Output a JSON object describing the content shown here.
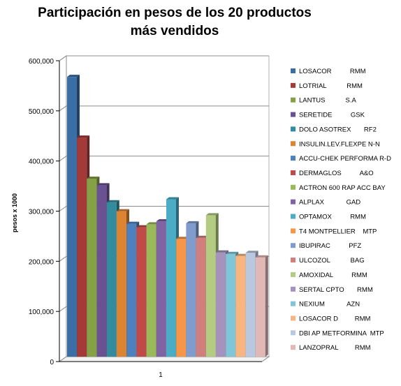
{
  "chart_data": {
    "type": "bar",
    "title": "Participación en pesos de los 20 productos más vendidos",
    "ylabel": "pesos x 1000",
    "xlabel": "",
    "categories": [
      "1"
    ],
    "ylim": [
      0,
      600000
    ],
    "yticks": [
      "0",
      "100,000",
      "200,000",
      "300,000",
      "400,000",
      "500,000",
      "600,000"
    ],
    "grid": true,
    "legend_position": "right",
    "series": [
      {
        "name": "LOSACOR          RMM",
        "value": 558000,
        "color": "#3a6ea5"
      },
      {
        "name": "LOTRIAL           RMM",
        "value": 437000,
        "color": "#a33a38"
      },
      {
        "name": "LANTUS           S.A",
        "value": 355000,
        "color": "#86a045"
      },
      {
        "name": "SERETIDE          GSK",
        "value": 342000,
        "color": "#6a5191"
      },
      {
        "name": "DOLO ASOTREX       RF2",
        "value": 308000,
        "color": "#338c9e"
      },
      {
        "name": "INSULIN.LEV.FLEXPE N-N",
        "value": 290000,
        "color": "#dd8433"
      },
      {
        "name": "ACCU-CHEK PERFORMA R-D",
        "value": 265000,
        "color": "#4d81be"
      },
      {
        "name": "DERMAGLOS          A&O",
        "value": 258000,
        "color": "#bf4a47"
      },
      {
        "name": "ACTRON 600 RAP ACC BAY",
        "value": 264000,
        "color": "#9aba59"
      },
      {
        "name": "ALPLAX            GAD",
        "value": 270000,
        "color": "#7f63a3"
      },
      {
        "name": "OPTAMOX          RMM",
        "value": 314000,
        "color": "#4bacc6"
      },
      {
        "name": "T4 MONTPELLIER    MTP",
        "value": 235000,
        "color": "#f79646"
      },
      {
        "name": "IBUPIRAC          PFZ",
        "value": 266000,
        "color": "#7f9ccd"
      },
      {
        "name": "ULCOZOL           BAG",
        "value": 237000,
        "color": "#d07f7d"
      },
      {
        "name": "AMOXIDAL          RMM",
        "value": 282000,
        "color": "#b3cc82"
      },
      {
        "name": "SERTAL CPTO       RMM",
        "value": 208000,
        "color": "#a592bd"
      },
      {
        "name": "NEXIUM            AZN",
        "value": 205000,
        "color": "#7fc6d9"
      },
      {
        "name": "LOSACOR D         RMM",
        "value": 201000,
        "color": "#f9b57f"
      },
      {
        "name": "DBI AP METFORMINA  MTP",
        "value": 207000,
        "color": "#b9c7e0"
      },
      {
        "name": "LANZOPRAL         RMM",
        "value": 198000,
        "color": "#e2b8b7"
      }
    ]
  }
}
